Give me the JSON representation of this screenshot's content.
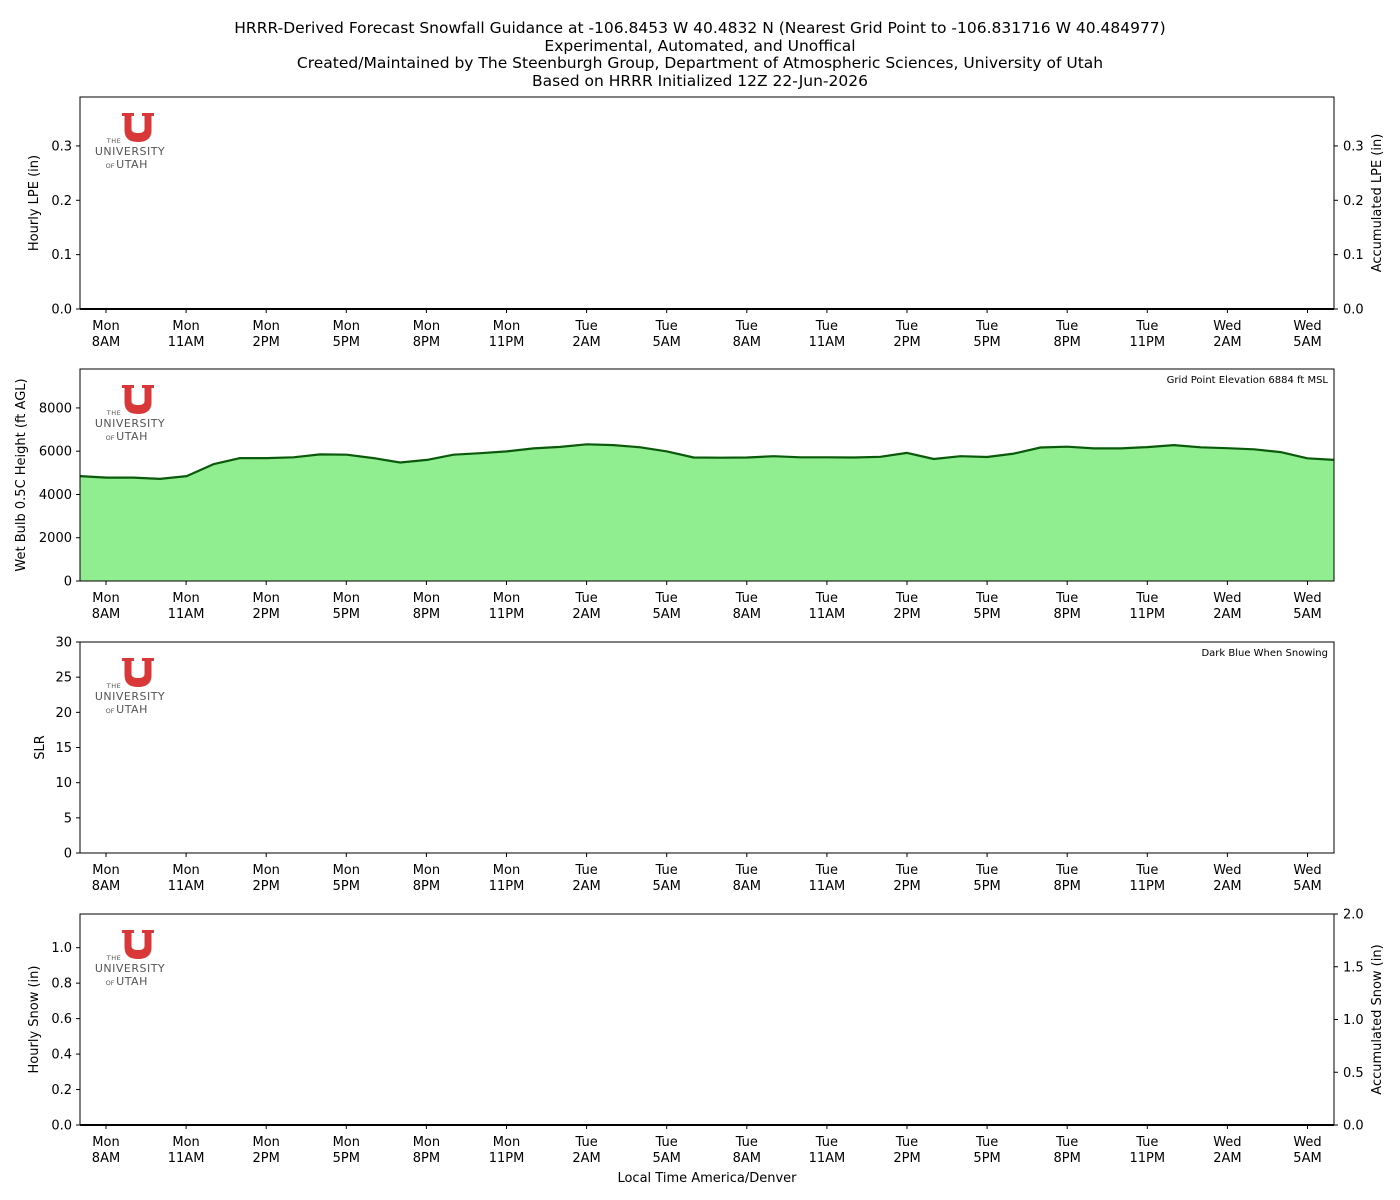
{
  "header": {
    "title_lines": [
      "HRRR-Derived Forecast Snowfall Guidance at -106.8453 W 40.4832 N (Nearest Grid Point to -106.831716 W 40.484977)",
      "Experimental, Automated, and Unoffical",
      "Created/Maintained by The Steenburgh Group, Department of Atmospheric Sciences, University of Utah",
      "Based on HRRR Initialized 12Z 22-Jun-2026"
    ]
  },
  "logo": {
    "line1": "THE",
    "line2": "UNIVERSITY",
    "line3_of": "OF",
    "line3": "UTAH",
    "letter": "U",
    "color": "#d93838"
  },
  "xlabel": "Local Time America/Denver",
  "xticks": [
    {
      "day": "Mon",
      "time": "8AM"
    },
    {
      "day": "Mon",
      "time": "11AM"
    },
    {
      "day": "Mon",
      "time": "2PM"
    },
    {
      "day": "Mon",
      "time": "5PM"
    },
    {
      "day": "Mon",
      "time": "8PM"
    },
    {
      "day": "Mon",
      "time": "11PM"
    },
    {
      "day": "Tue",
      "time": "2AM"
    },
    {
      "day": "Tue",
      "time": "5AM"
    },
    {
      "day": "Tue",
      "time": "8AM"
    },
    {
      "day": "Tue",
      "time": "11AM"
    },
    {
      "day": "Tue",
      "time": "2PM"
    },
    {
      "day": "Tue",
      "time": "5PM"
    },
    {
      "day": "Tue",
      "time": "8PM"
    },
    {
      "day": "Tue",
      "time": "11PM"
    },
    {
      "day": "Wed",
      "time": "2AM"
    },
    {
      "day": "Wed",
      "time": "5AM"
    }
  ],
  "chart_data": [
    {
      "type": "bar",
      "ylabel": "Hourly LPE (in)",
      "ylabel_right": "Accumulated LPE (in)",
      "ylim": [
        0,
        0.39
      ],
      "yticks": [
        0.0,
        0.1,
        0.2,
        0.3
      ],
      "ytick_labels": [
        "0.0",
        "0.1",
        "0.2",
        "0.3"
      ],
      "ylim_right": [
        0,
        0.39
      ],
      "yticks_right": [
        0.0,
        0.1,
        0.2,
        0.3
      ],
      "ytick_labels_right": [
        "0.0",
        "0.1",
        "0.2",
        "0.3"
      ],
      "hourly_values": [
        0,
        0,
        0,
        0,
        0,
        0,
        0,
        0,
        0,
        0,
        0,
        0,
        0,
        0,
        0,
        0,
        0,
        0,
        0,
        0,
        0,
        0,
        0,
        0,
        0,
        0,
        0,
        0,
        0,
        0,
        0,
        0,
        0,
        0,
        0,
        0,
        0,
        0,
        0,
        0,
        0,
        0,
        0,
        0,
        0,
        0,
        0,
        0
      ],
      "accumulated_values": [
        0,
        0,
        0,
        0,
        0,
        0,
        0,
        0,
        0,
        0,
        0,
        0,
        0,
        0,
        0,
        0,
        0,
        0,
        0,
        0,
        0,
        0,
        0,
        0,
        0,
        0,
        0,
        0,
        0,
        0,
        0,
        0,
        0,
        0,
        0,
        0,
        0,
        0,
        0,
        0,
        0,
        0,
        0,
        0,
        0,
        0,
        0,
        0
      ],
      "annotation": ""
    },
    {
      "type": "area",
      "ylabel": "Wet Bulb 0.5C Height (ft AGL)",
      "ylim": [
        0,
        9800
      ],
      "yticks": [
        0,
        2000,
        4000,
        6000,
        8000
      ],
      "ytick_labels": [
        "0",
        "2000",
        "4000",
        "6000",
        "8000"
      ],
      "values": [
        4850,
        4780,
        4780,
        4720,
        4850,
        5400,
        5680,
        5680,
        5720,
        5850,
        5840,
        5680,
        5480,
        5600,
        5840,
        5910,
        5990,
        6130,
        6200,
        6320,
        6280,
        6180,
        5990,
        5710,
        5700,
        5710,
        5770,
        5720,
        5720,
        5710,
        5740,
        5920,
        5640,
        5770,
        5730,
        5890,
        6170,
        6210,
        6130,
        6130,
        6190,
        6280,
        6180,
        6140,
        6090,
        5960,
        5670,
        5600
      ],
      "fill_color": "#90ee90",
      "line_color": "#0b5a0b",
      "annotation": "Grid Point Elevation 6884 ft MSL"
    },
    {
      "type": "line",
      "ylabel": "SLR",
      "ylim": [
        0,
        30
      ],
      "yticks": [
        0,
        5,
        10,
        15,
        20,
        25,
        30
      ],
      "ytick_labels": [
        "0",
        "5",
        "10",
        "15",
        "20",
        "25",
        "30"
      ],
      "values": [],
      "annotation": "Dark Blue When Snowing"
    },
    {
      "type": "bar",
      "ylabel": "Hourly Snow (in)",
      "ylabel_right": "Accumulated Snow (in)",
      "ylim": [
        0,
        1.19
      ],
      "yticks": [
        0.0,
        0.2,
        0.4,
        0.6,
        0.8,
        1.0
      ],
      "ytick_labels": [
        "0.0",
        "0.2",
        "0.4",
        "0.6",
        "0.8",
        "1.0"
      ],
      "ylim_right": [
        0,
        2.0
      ],
      "yticks_right": [
        0.0,
        0.5,
        1.0,
        1.5,
        2.0
      ],
      "ytick_labels_right": [
        "0.0",
        "0.5",
        "1.0",
        "1.5",
        "2.0"
      ],
      "hourly_values": [
        0,
        0,
        0,
        0,
        0,
        0,
        0,
        0,
        0,
        0,
        0,
        0,
        0,
        0,
        0,
        0,
        0,
        0,
        0,
        0,
        0,
        0,
        0,
        0,
        0,
        0,
        0,
        0,
        0,
        0,
        0,
        0,
        0,
        0,
        0,
        0,
        0,
        0,
        0,
        0,
        0,
        0,
        0,
        0,
        0,
        0,
        0,
        0
      ],
      "accumulated_values": [
        0,
        0,
        0,
        0,
        0,
        0,
        0,
        0,
        0,
        0,
        0,
        0,
        0,
        0,
        0,
        0,
        0,
        0,
        0,
        0,
        0,
        0,
        0,
        0,
        0,
        0,
        0,
        0,
        0,
        0,
        0,
        0,
        0,
        0,
        0,
        0,
        0,
        0,
        0,
        0,
        0,
        0,
        0,
        0,
        0,
        0,
        0,
        0
      ],
      "annotation": ""
    }
  ]
}
